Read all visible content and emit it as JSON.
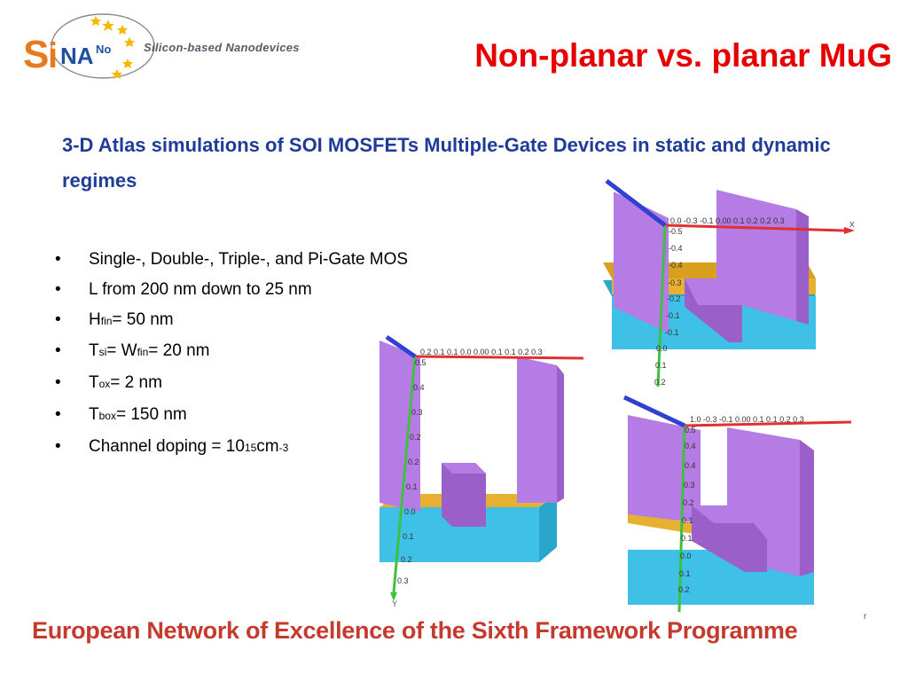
{
  "header": {
    "logo_brand": "SiNANo",
    "logo_tagline": "Silicon-based Nanodevices",
    "title": "Non-planar vs. planar MuG"
  },
  "subtitle": "3-D Atlas simulations of SOI MOSFETs Multiple-Gate Devices in static and dynamic regimes",
  "bullets": {
    "b1": "Single-, Double-, Triple-, and Pi-Gate MOS",
    "b2": "L from 200 nm down to 25 nm",
    "b3_pre": "H",
    "b3_sub": "fin",
    "b3_post": " = 50 nm",
    "b4_pre": "T",
    "b4_sub1": "si",
    "b4_mid": " = W",
    "b4_sub2": "fin",
    "b4_post": " = 20 nm",
    "b5_pre": "T",
    "b5_sub": "ox",
    "b5_post": " = 2 nm",
    "b6_pre": "T",
    "b6_sub": "box",
    "b6_post": " = 150 nm",
    "b7_pre": "Channel doping = 10",
    "b7_sup1": "15",
    "b7_mid": " cm",
    "b7_sup2": "-3"
  },
  "figures": {
    "axis_x_label": "x",
    "axis_y_label": "Y",
    "top_x_ticks": "0.0 -0.3 -0.1 0.00 0.1 0.2 0.2 0.3",
    "left_x_ticks": "0.2 0.1 0.1 0.0 0.00 0.1 0.1 0.2 0.3",
    "bottom_x_ticks": "1.0 -0.3 -0.1 0.00 0.1 0.1 0.2 0.3",
    "y_ticks_top": [
      "-0.5",
      "-0.4",
      "-0.4",
      "-0.3",
      "-0.2",
      "-0.1",
      "-0.1",
      "0.0",
      "0.1",
      "0.2"
    ],
    "y_ticks_left": [
      "0.5",
      "0.4",
      "0.3",
      "0.2",
      "0.2",
      "0.1",
      "0.0",
      "0.1",
      "0.2",
      "0.3"
    ],
    "y_ticks_bottom": [
      "0.5",
      "0.4",
      "0.4",
      "0.3",
      "0.2",
      "0.1",
      "0.1",
      "0.0",
      "0.1",
      "0.2"
    ],
    "colors": {
      "gate": "#b57ce6",
      "gate_side": "#9a5fc8",
      "oxide": "#e8b030",
      "box": "#3fc0e6",
      "box_side": "#2aa5cc",
      "axis_x": "#e03030",
      "axis_y": "#40c040",
      "axis_z": "#3040d0"
    }
  },
  "footer": "European Network of Excellence of the Sixth Framework Programme",
  "stray_mark": "r"
}
